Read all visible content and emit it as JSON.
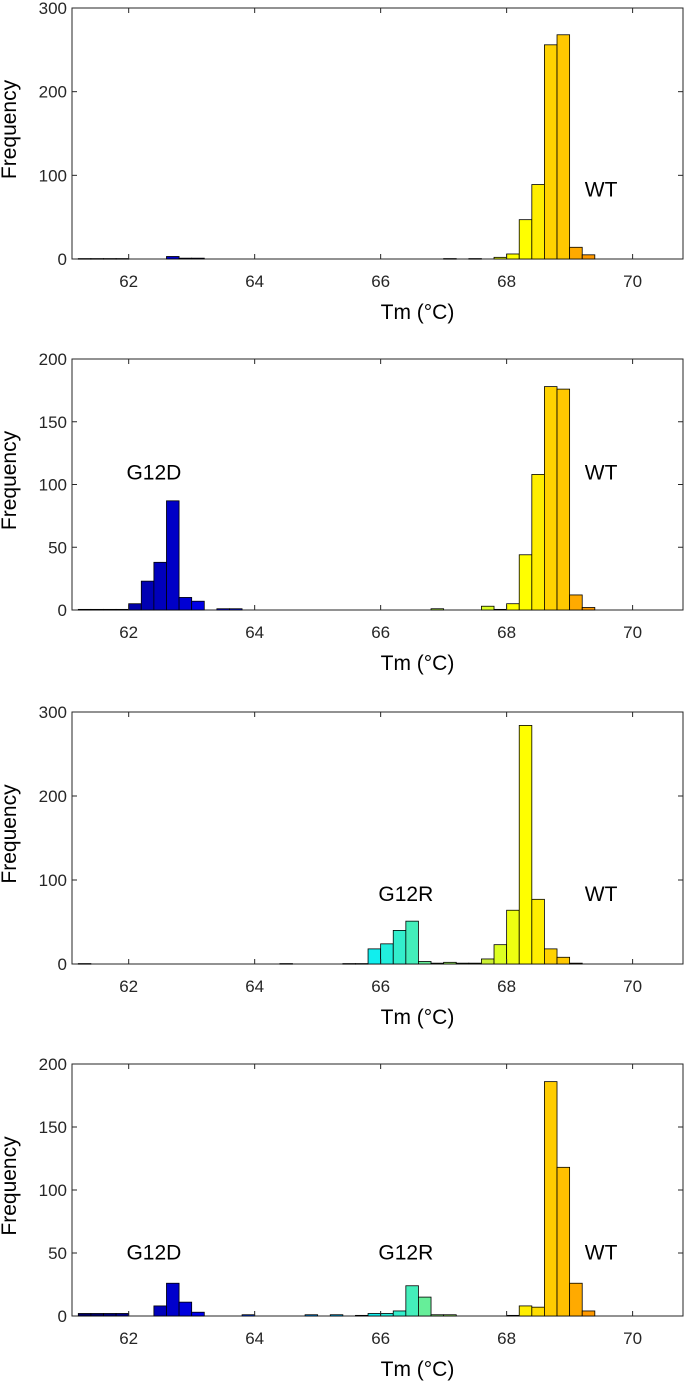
{
  "chart_data": [
    {
      "type": "bar",
      "xlabel": "Tm (°C)",
      "ylabel": "Frequency",
      "xlim": [
        61.1,
        70.8
      ],
      "ylim": [
        0,
        300
      ],
      "xticks": [
        62,
        64,
        66,
        68,
        70
      ],
      "yticks": [
        0,
        100,
        200,
        300
      ],
      "annotations": [
        {
          "text": "WT",
          "x": 69.5,
          "y": 75
        }
      ],
      "bins": [
        {
          "x": 61.3,
          "value": 0.5,
          "color": "#000099"
        },
        {
          "x": 61.5,
          "value": 0.5,
          "color": "#00008f"
        },
        {
          "x": 61.7,
          "value": 0.5,
          "color": "#00008f"
        },
        {
          "x": 61.9,
          "value": 0.5,
          "color": "#000099"
        },
        {
          "x": 62.7,
          "value": 3,
          "color": "#0000cc"
        },
        {
          "x": 62.9,
          "value": 1,
          "color": "#0000dd"
        },
        {
          "x": 63.1,
          "value": 1,
          "color": "#0000ee"
        },
        {
          "x": 67.1,
          "value": 0.5,
          "color": "#ccff33"
        },
        {
          "x": 67.5,
          "value": 0.5,
          "color": "#ddff22"
        },
        {
          "x": 67.9,
          "value": 2,
          "color": "#eeff11"
        },
        {
          "x": 68.1,
          "value": 6,
          "color": "#ffff00"
        },
        {
          "x": 68.3,
          "value": 47,
          "color": "#ffff00"
        },
        {
          "x": 68.5,
          "value": 89,
          "color": "#ffee00"
        },
        {
          "x": 68.7,
          "value": 256,
          "color": "#ffd200"
        },
        {
          "x": 68.9,
          "value": 268,
          "color": "#ffc800"
        },
        {
          "x": 69.1,
          "value": 14,
          "color": "#ffaa00"
        },
        {
          "x": 69.3,
          "value": 5,
          "color": "#ff9900"
        }
      ]
    },
    {
      "type": "bar",
      "xlabel": "Tm (°C)",
      "ylabel": "Frequency",
      "xlim": [
        61.1,
        70.8
      ],
      "ylim": [
        0,
        200
      ],
      "xticks": [
        62,
        64,
        66,
        68,
        70
      ],
      "yticks": [
        0,
        50,
        100,
        150,
        200
      ],
      "annotations": [
        {
          "text": "G12D",
          "x": 62.4,
          "y": 104
        },
        {
          "text": "WT",
          "x": 69.5,
          "y": 104
        }
      ],
      "bins": [
        {
          "x": 61.3,
          "value": 0.5,
          "color": "#00008f"
        },
        {
          "x": 61.5,
          "value": 0.5,
          "color": "#00008f"
        },
        {
          "x": 61.7,
          "value": 0.5,
          "color": "#00008f"
        },
        {
          "x": 61.9,
          "value": 0.5,
          "color": "#000099"
        },
        {
          "x": 62.1,
          "value": 5,
          "color": "#0000aa"
        },
        {
          "x": 62.3,
          "value": 23,
          "color": "#0000b3"
        },
        {
          "x": 62.5,
          "value": 38,
          "color": "#0000bb"
        },
        {
          "x": 62.7,
          "value": 87,
          "color": "#0000c6"
        },
        {
          "x": 62.9,
          "value": 10,
          "color": "#0000d4"
        },
        {
          "x": 63.1,
          "value": 7,
          "color": "#0000e6"
        },
        {
          "x": 63.5,
          "value": 1,
          "color": "#0000ff"
        },
        {
          "x": 63.7,
          "value": 1,
          "color": "#0011ff"
        },
        {
          "x": 66.9,
          "value": 1,
          "color": "#bbff44"
        },
        {
          "x": 67.7,
          "value": 3,
          "color": "#ddff22"
        },
        {
          "x": 67.9,
          "value": 0.5,
          "color": "#eeff11"
        },
        {
          "x": 68.1,
          "value": 5,
          "color": "#ffff00"
        },
        {
          "x": 68.3,
          "value": 44,
          "color": "#ffff00"
        },
        {
          "x": 68.5,
          "value": 108,
          "color": "#ffee00"
        },
        {
          "x": 68.7,
          "value": 178,
          "color": "#ffd200"
        },
        {
          "x": 68.9,
          "value": 176,
          "color": "#ffc800"
        },
        {
          "x": 69.1,
          "value": 12,
          "color": "#ffaa00"
        },
        {
          "x": 69.3,
          "value": 2,
          "color": "#ff9900"
        }
      ]
    },
    {
      "type": "bar",
      "xlabel": "Tm (°C)",
      "ylabel": "Frequency",
      "xlim": [
        61.1,
        70.8
      ],
      "ylim": [
        0,
        300
      ],
      "xticks": [
        62,
        64,
        66,
        68,
        70
      ],
      "yticks": [
        0,
        100,
        200,
        300
      ],
      "annotations": [
        {
          "text": "G12R",
          "x": 66.4,
          "y": 75
        },
        {
          "text": "WT",
          "x": 69.5,
          "y": 75
        }
      ],
      "bins": [
        {
          "x": 61.3,
          "value": 0.5,
          "color": "#000099"
        },
        {
          "x": 64.5,
          "value": 0.5,
          "color": "#0066ff"
        },
        {
          "x": 65.5,
          "value": 0.5,
          "color": "#00bbff"
        },
        {
          "x": 65.7,
          "value": 0.5,
          "color": "#00ddff"
        },
        {
          "x": 65.9,
          "value": 18,
          "color": "#11eeee"
        },
        {
          "x": 66.1,
          "value": 24,
          "color": "#22eedd"
        },
        {
          "x": 66.3,
          "value": 40,
          "color": "#33eecc"
        },
        {
          "x": 66.5,
          "value": 51,
          "color": "#44eebb"
        },
        {
          "x": 66.7,
          "value": 3,
          "color": "#66ee99"
        },
        {
          "x": 66.9,
          "value": 1,
          "color": "#88ee77"
        },
        {
          "x": 67.1,
          "value": 2,
          "color": "#99ee66"
        },
        {
          "x": 67.3,
          "value": 1,
          "color": "#aaee55"
        },
        {
          "x": 67.5,
          "value": 1,
          "color": "#bbee44"
        },
        {
          "x": 67.7,
          "value": 6,
          "color": "#ccf033"
        },
        {
          "x": 67.9,
          "value": 23,
          "color": "#ddff22"
        },
        {
          "x": 68.1,
          "value": 64,
          "color": "#eeff11"
        },
        {
          "x": 68.3,
          "value": 284,
          "color": "#ffff00"
        },
        {
          "x": 68.5,
          "value": 77,
          "color": "#ffee00"
        },
        {
          "x": 68.7,
          "value": 18,
          "color": "#ffd200"
        },
        {
          "x": 68.9,
          "value": 8,
          "color": "#ffc800"
        },
        {
          "x": 69.1,
          "value": 1,
          "color": "#ffaa00"
        }
      ]
    },
    {
      "type": "bar",
      "xlabel": "Tm (°C)",
      "ylabel": "Frequency",
      "xlim": [
        61.1,
        70.8
      ],
      "ylim": [
        0,
        200
      ],
      "xticks": [
        62,
        64,
        66,
        68,
        70
      ],
      "yticks": [
        0,
        50,
        100,
        150,
        200
      ],
      "annotations": [
        {
          "text": "G12D",
          "x": 62.4,
          "y": 45
        },
        {
          "text": "G12R",
          "x": 66.4,
          "y": 45
        },
        {
          "text": "WT",
          "x": 69.5,
          "y": 45
        }
      ],
      "bins": [
        {
          "x": 61.3,
          "value": 2,
          "color": "#000066"
        },
        {
          "x": 61.5,
          "value": 2,
          "color": "#000066"
        },
        {
          "x": 61.7,
          "value": 2,
          "color": "#000077"
        },
        {
          "x": 61.9,
          "value": 2,
          "color": "#000088"
        },
        {
          "x": 62.5,
          "value": 8,
          "color": "#0000bb"
        },
        {
          "x": 62.7,
          "value": 26,
          "color": "#0000cc"
        },
        {
          "x": 62.9,
          "value": 11,
          "color": "#0000dd"
        },
        {
          "x": 63.1,
          "value": 3,
          "color": "#0000ee"
        },
        {
          "x": 63.9,
          "value": 1,
          "color": "#0044ff"
        },
        {
          "x": 64.9,
          "value": 1,
          "color": "#0099ff"
        },
        {
          "x": 65.3,
          "value": 1,
          "color": "#00bbff"
        },
        {
          "x": 65.7,
          "value": 0.5,
          "color": "#00ddff"
        },
        {
          "x": 65.9,
          "value": 2,
          "color": "#11eeee"
        },
        {
          "x": 66.1,
          "value": 2,
          "color": "#22eedd"
        },
        {
          "x": 66.3,
          "value": 4,
          "color": "#33eecc"
        },
        {
          "x": 66.5,
          "value": 24,
          "color": "#44eebb"
        },
        {
          "x": 66.7,
          "value": 15,
          "color": "#66ee99"
        },
        {
          "x": 66.9,
          "value": 1,
          "color": "#88ee77"
        },
        {
          "x": 67.1,
          "value": 1,
          "color": "#99ee66"
        },
        {
          "x": 68.1,
          "value": 0.5,
          "color": "#eeff11"
        },
        {
          "x": 68.3,
          "value": 8,
          "color": "#ffee00"
        },
        {
          "x": 68.5,
          "value": 7,
          "color": "#ffdd00"
        },
        {
          "x": 68.7,
          "value": 186,
          "color": "#ffcc00"
        },
        {
          "x": 68.9,
          "value": 118,
          "color": "#ffc000"
        },
        {
          "x": 69.1,
          "value": 26,
          "color": "#ffaa00"
        },
        {
          "x": 69.3,
          "value": 4,
          "color": "#ff9900"
        }
      ]
    }
  ]
}
